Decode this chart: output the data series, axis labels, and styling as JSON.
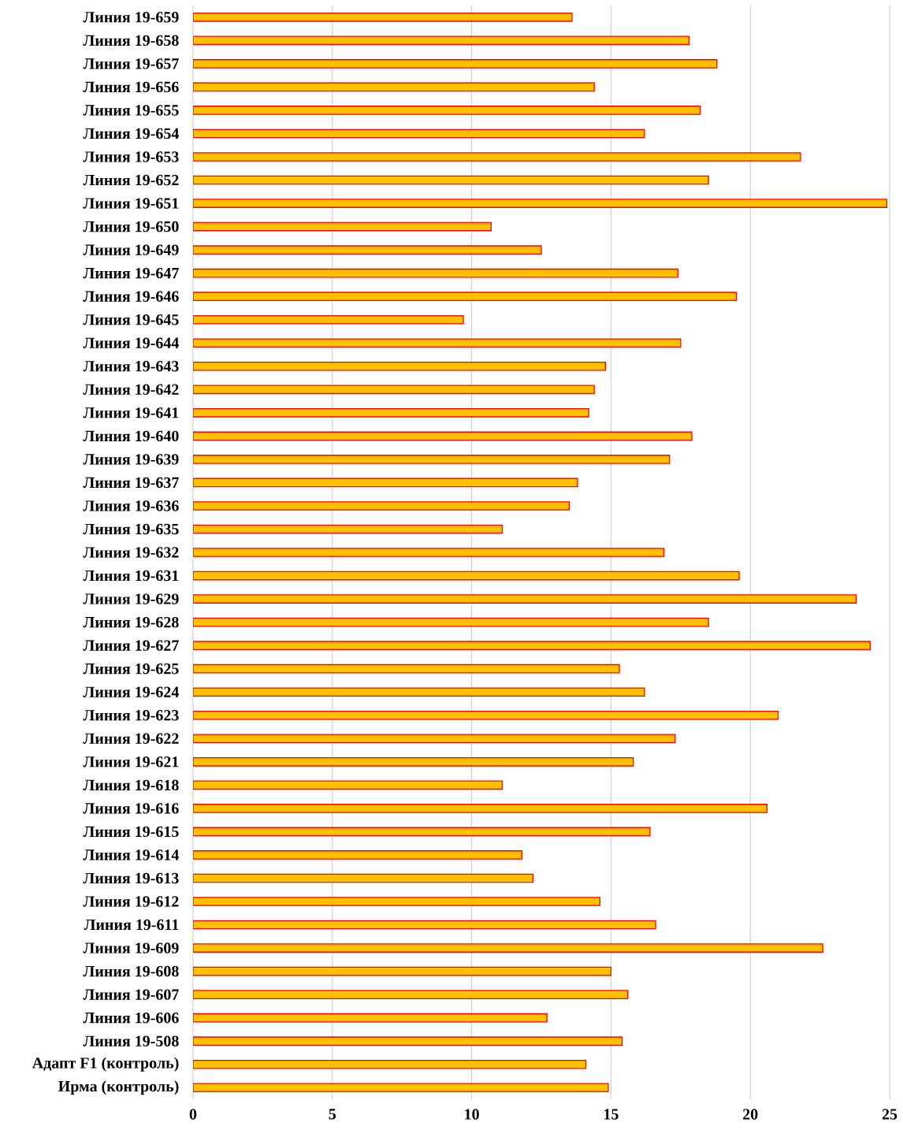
{
  "chart_data": {
    "type": "bar",
    "orientation": "horizontal",
    "categories": [
      "Линия 19-659",
      "Линия 19-658",
      "Линия 19-657",
      "Линия 19-656",
      "Линия 19-655",
      "Линия 19-654",
      "Линия 19-653",
      "Линия 19-652",
      "Линия 19-651",
      "Линия 19-650",
      "Линия 19-649",
      "Линия 19-647",
      "Линия 19-646",
      "Линия 19-645",
      "Линия 19-644",
      "Линия 19-643",
      "Линия 19-642",
      "Линия 19-641",
      "Линия 19-640",
      "Линия 19-639",
      "Линия 19-637",
      "Линия 19-636",
      "Линия 19-635",
      "Линия 19-632",
      "Линия 19-631",
      "Линия 19-629",
      "Линия 19-628",
      "Линия 19-627",
      "Линия 19-625",
      "Линия 19-624",
      "Линия 19-623",
      "Линия 19-622",
      "Линия 19-621",
      "Линия 19-618",
      "Линия 19-616",
      "Линия 19-615",
      "Линия 19-614",
      "Линия 19-613",
      "Линия 19-612",
      "Линия 19-611",
      "Линия 19-609",
      "Линия 19-608",
      "Линия 19-607",
      "Линия 19-606",
      "Линия 19-508",
      "Адапт F1 (контроль)",
      "Ирма (контроль)"
    ],
    "values": [
      13.6,
      17.8,
      18.8,
      14.4,
      18.2,
      16.2,
      21.8,
      18.5,
      24.9,
      10.7,
      12.5,
      17.4,
      19.5,
      9.7,
      17.5,
      14.8,
      14.4,
      14.2,
      17.9,
      17.1,
      13.8,
      13.5,
      11.1,
      16.9,
      19.6,
      23.8,
      18.5,
      24.3,
      15.3,
      16.2,
      21.0,
      17.3,
      15.8,
      11.1,
      20.6,
      16.4,
      11.8,
      12.2,
      14.6,
      16.6,
      22.6,
      15.0,
      15.6,
      12.7,
      15.4,
      14.1,
      14.9
    ],
    "color": "#ffc000",
    "xlim": [
      0,
      25
    ],
    "xticks": [
      0,
      5,
      10,
      15,
      20,
      25
    ],
    "grid": "x"
  }
}
